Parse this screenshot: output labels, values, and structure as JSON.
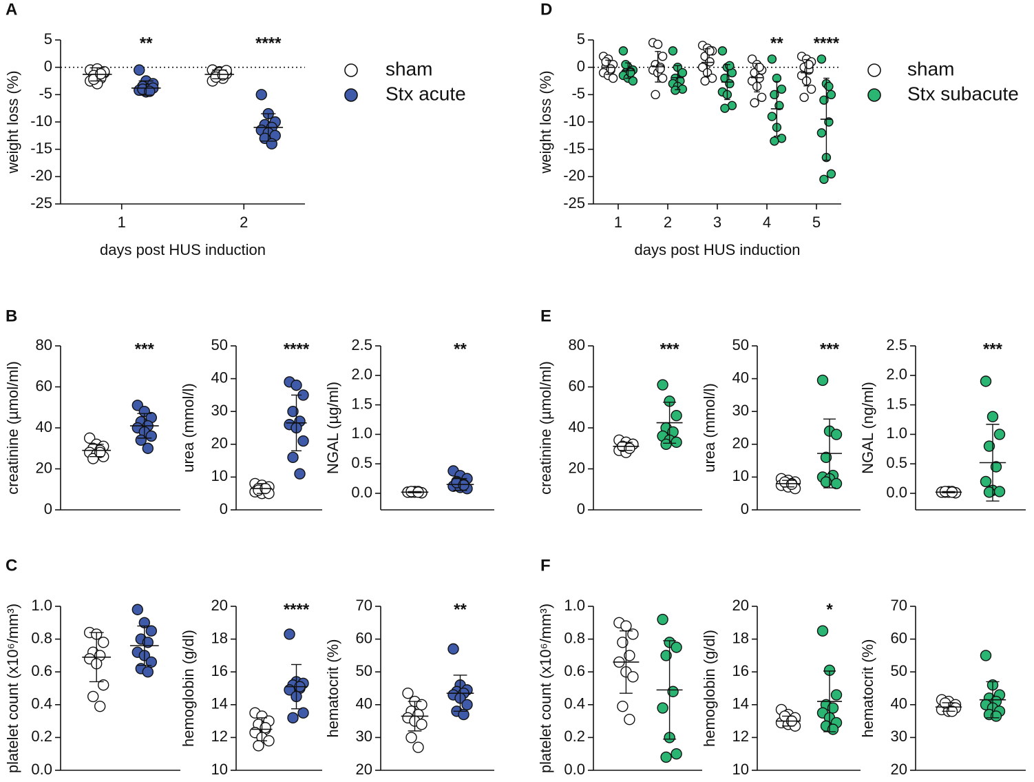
{
  "chart_data": [
    {
      "type": "strip",
      "panel": "A",
      "ylabel": "weight loss (%)",
      "xlabel": "days post HUS induction",
      "categories": [
        1,
        2
      ],
      "ylim": [
        -25,
        5
      ],
      "yticks": [
        5,
        0,
        -5,
        -10,
        -15,
        -20,
        -25
      ],
      "zeroline": true,
      "legend": true,
      "series": [
        {
          "name": "sham",
          "color": "#ffffff",
          "values": [
            [
              -0.5,
              -0.3,
              -1.0,
              -1.5,
              -2.0,
              -2.5,
              -3.0,
              -0.8,
              -2.2,
              -1.2
            ],
            [
              -0.5,
              -0.8,
              -1.2,
              -1.5,
              -2.0,
              -2.5,
              -1.0,
              -0.6,
              -1.8,
              -1.4
            ]
          ],
          "mean": [
            -1.3,
            -1.3
          ],
          "sd": [
            1.2,
            0.8
          ]
        },
        {
          "name": "Stx acute",
          "color": "#3f5aa8",
          "values": [
            [
              -0.5,
              -2.5,
              -3.0,
              -3.5,
              -4.0,
              -4.2,
              -4.5,
              -3.8,
              -4.0,
              -4.4
            ],
            [
              -5,
              -8.5,
              -10,
              -10.5,
              -11,
              -11.5,
              -12,
              -12.5,
              -13,
              -14
            ]
          ],
          "mean": [
            -3.8,
            -11
          ],
          "sd": [
            1.3,
            2.5
          ]
        }
      ],
      "annotations": [
        "**",
        "****"
      ]
    },
    {
      "type": "strip",
      "panel": "B",
      "ylabel": "creatinine (µmol/ml)",
      "ylim": [
        0,
        80
      ],
      "yticks": [
        0,
        20,
        40,
        60,
        80
      ],
      "series": [
        {
          "name": "sham",
          "color": "#ffffff",
          "values": [
            [
              35,
              32,
              31,
              30,
              29,
              28,
              27,
              26,
              25,
              28
            ]
          ],
          "mean": [
            29
          ],
          "sd": [
            3
          ]
        },
        {
          "name": "Stx acute",
          "color": "#3f5aa8",
          "values": [
            [
              51,
              48,
              45,
              43,
              41,
              40,
              38,
              36,
              34,
              30
            ]
          ],
          "mean": [
            41
          ],
          "sd": [
            6
          ]
        }
      ],
      "annotations": [
        "***"
      ]
    },
    {
      "type": "strip",
      "ylabel": "urea (mmol/l)",
      "ylim": [
        0,
        50
      ],
      "yticks": [
        0,
        10,
        20,
        30,
        40,
        50
      ],
      "series": [
        {
          "name": "sham",
          "color": "#ffffff",
          "values": [
            [
              8,
              7.5,
              7,
              6.5,
              6,
              5.5,
              5,
              5,
              6,
              6.5
            ]
          ],
          "mean": [
            6.5
          ],
          "sd": [
            1.5
          ]
        },
        {
          "name": "Stx acute",
          "color": "#3f5aa8",
          "values": [
            [
              39,
              38,
              35,
              30,
              27,
              26,
              25,
              21,
              16,
              11
            ]
          ],
          "mean": [
            26.5
          ],
          "sd": [
            8.5
          ]
        }
      ],
      "annotations": [
        "****"
      ]
    },
    {
      "type": "strip",
      "ylabel": "NGAL (µg/ml)",
      "ylim": [
        -0.28,
        2.5
      ],
      "yticks": [
        {
          "value": 0,
          "label": "0.0"
        },
        {
          "value": 0.5,
          "label": "0.5"
        },
        {
          "value": 1,
          "label": "1.0"
        },
        {
          "value": 1.5,
          "label": "1.5"
        },
        {
          "value": 2,
          "label": "2.0"
        },
        {
          "value": 2.5,
          "label": "2.5"
        }
      ],
      "series": [
        {
          "name": "sham",
          "color": "#ffffff",
          "values": [
            [
              0.02,
              0.03,
              0.01,
              0.02,
              0.03,
              0.02,
              0.02,
              0.01,
              0.03,
              0.02
            ]
          ],
          "mean": [
            0.02
          ],
          "sd": [
            0.01
          ]
        },
        {
          "name": "Stx acute",
          "color": "#3f5aa8",
          "values": [
            [
              0.38,
              0.3,
              0.25,
              0.2,
              0.15,
              0.12,
              0.1,
              0.08,
              0.18,
              0.14
            ]
          ],
          "mean": [
            0.15
          ],
          "sd": [
            0.1
          ]
        }
      ],
      "annotations": [
        "**"
      ]
    },
    {
      "type": "strip",
      "panel": "C",
      "ylabel": "platelet count (x10⁶/mm³)",
      "ylim": [
        0,
        1
      ],
      "yticks": [
        {
          "value": 0,
          "label": "0.0"
        },
        0.2,
        0.4,
        0.6,
        0.8,
        {
          "value": 1,
          "label": "1.0"
        }
      ],
      "series": [
        {
          "name": "sham",
          "color": "#ffffff",
          "values": [
            [
              0.84,
              0.83,
              0.78,
              0.72,
              0.7,
              0.68,
              0.65,
              0.52,
              0.45,
              0.39
            ]
          ],
          "mean": [
            0.69
          ],
          "sd": [
            0.15
          ]
        },
        {
          "name": "Stx acute",
          "color": "#3f5aa8",
          "values": [
            [
              0.98,
              0.9,
              0.85,
              0.8,
              0.78,
              0.72,
              0.7,
              0.66,
              0.62,
              0.6
            ]
          ],
          "mean": [
            0.76
          ],
          "sd": [
            0.12
          ]
        }
      ]
    },
    {
      "type": "strip",
      "ylabel": "hemoglobin (g/dl)",
      "ylim": [
        10,
        20
      ],
      "yticks": [
        10,
        12,
        14,
        16,
        18,
        20
      ],
      "series": [
        {
          "name": "sham",
          "color": "#ffffff",
          "values": [
            [
              13.5,
              13.3,
              13,
              12.8,
              12.5,
              12.3,
              12,
              11.8,
              11.5,
              12.6
            ]
          ],
          "mean": [
            12.5
          ],
          "sd": [
            0.7
          ]
        },
        {
          "name": "Stx acute",
          "color": "#3f5aa8",
          "values": [
            [
              18.3,
              15.4,
              15.3,
              15.2,
              15,
              14.9,
              14.5,
              13.5,
              13.2,
              15.1
            ]
          ],
          "mean": [
            15.1
          ],
          "sd": [
            1.35
          ]
        }
      ],
      "annotations": [
        "****"
      ]
    },
    {
      "type": "strip",
      "ylabel": "hematocrit (%)",
      "ylim": [
        20,
        70
      ],
      "yticks": [
        20,
        30,
        40,
        50,
        60,
        70
      ],
      "series": [
        {
          "name": "sham",
          "color": "#ffffff",
          "values": [
            [
              43.5,
              41,
              40,
              38,
              37,
              36,
              35,
              34,
              30,
              27
            ]
          ],
          "mean": [
            36.5
          ],
          "sd": [
            4.5
          ]
        },
        {
          "name": "Stx acute",
          "color": "#3f5aa8",
          "values": [
            [
              57,
              46,
              44.5,
              44,
              43.5,
              43,
              42,
              40,
              38,
              37
            ]
          ],
          "mean": [
            43.5
          ],
          "sd": [
            5.5
          ]
        }
      ],
      "annotations": [
        "**"
      ]
    },
    {
      "type": "strip",
      "panel": "D",
      "ylabel": "weight loss (%)",
      "xlabel": "days post HUS induction",
      "categories": [
        1,
        2,
        3,
        4,
        5
      ],
      "ylim": [
        -25,
        5
      ],
      "yticks": [
        5,
        0,
        -5,
        -10,
        -15,
        -20,
        -25
      ],
      "zeroline": true,
      "legend": true,
      "series": [
        {
          "name": "sham",
          "color": "#ffffff",
          "values": [
            [
              2,
              1.5,
              0.5,
              0,
              -0.5,
              -1,
              -1.5,
              -2,
              1,
              -0.3
            ],
            [
              4.5,
              4.2,
              2,
              0.5,
              0,
              -0.5,
              -1,
              -2,
              -5,
              -0.3
            ],
            [
              4,
              3.5,
              3,
              2,
              1,
              0,
              -1,
              -2,
              -2.5,
              3
            ],
            [
              1.5,
              0.5,
              -0.5,
              -1,
              -2,
              -2.5,
              -3.5,
              -5.5,
              -6.5,
              0
            ],
            [
              2,
              1.5,
              1,
              0,
              -0.5,
              -1.5,
              -2.5,
              -4,
              -5.5,
              0.5
            ]
          ],
          "mean": [
            0,
            0.1,
            0.9,
            -1.9,
            -1
          ],
          "sd": [
            1.3,
            2.8,
            2.5,
            2.6,
            2.4
          ]
        },
        {
          "name": "Stx subacute",
          "color": "#2bb573",
          "values": [
            [
              3,
              0,
              -0.5,
              -1,
              -0.8,
              -1.5,
              -2,
              -2.5,
              0.5,
              -1
            ],
            [
              3,
              0,
              -1,
              -2,
              -2.5,
              -3,
              -3.5,
              -4,
              -4.2
            ],
            [
              3,
              0,
              -1,
              -2,
              -3,
              -4.5,
              -5,
              -7,
              -7.5,
              0.3
            ],
            [
              1.5,
              -2,
              -4,
              -5,
              -7,
              -9,
              -11,
              -13,
              -13.5
            ],
            [
              1.5,
              -3,
              -5,
              -6,
              -10,
              -12,
              -16.5,
              -19.5,
              -20.5,
              -3.5
            ]
          ],
          "mean": [
            -0.6,
            -1.9,
            -2.7,
            -7.6,
            -9.5
          ],
          "sd": [
            1.4,
            2.2,
            3.2,
            5,
            7.5
          ]
        }
      ],
      "annotations": [
        null,
        null,
        null,
        "**",
        "****"
      ]
    },
    {
      "type": "strip",
      "panel": "E",
      "ylabel": "creatinine (µmol/ml)",
      "ylim": [
        0,
        80
      ],
      "yticks": [
        0,
        20,
        40,
        60,
        80
      ],
      "series": [
        {
          "name": "sham",
          "color": "#ffffff",
          "values": [
            [
              34,
              33,
              32,
              31,
              30,
              29,
              28,
              32,
              31,
              30
            ]
          ],
          "mean": [
            31
          ],
          "sd": [
            2
          ]
        },
        {
          "name": "Stx subacute",
          "color": "#2bb573",
          "values": [
            [
              61,
              53,
              46,
              40,
              38,
              36,
              34,
              33,
              32
            ]
          ],
          "mean": [
            42.5
          ],
          "sd": [
            10
          ]
        }
      ],
      "annotations": [
        "***"
      ]
    },
    {
      "type": "strip",
      "ylabel": "urea (mmol/l)",
      "ylim": [
        0,
        50
      ],
      "yticks": [
        0,
        10,
        20,
        30,
        40,
        50
      ],
      "series": [
        {
          "name": "sham",
          "color": "#ffffff",
          "values": [
            [
              9.5,
              9,
              8.5,
              8,
              8,
              7.5,
              7,
              6.5,
              8.5,
              7.8
            ]
          ],
          "mean": [
            8
          ],
          "sd": [
            1
          ]
        },
        {
          "name": "Stx subacute",
          "color": "#2bb573",
          "values": [
            [
              39.5,
              24,
              23,
              16,
              10.5,
              10,
              9.5,
              8,
              8.5
            ]
          ],
          "mean": [
            17.2
          ],
          "sd": [
            10.5
          ]
        }
      ],
      "annotations": [
        "***"
      ]
    },
    {
      "type": "strip",
      "ylabel": "NGAL (ng/ml)",
      "ylim": [
        -0.28,
        2.5
      ],
      "yticks": [
        {
          "value": 0,
          "label": "0.0"
        },
        {
          "value": 0.5,
          "label": "0.5"
        },
        {
          "value": 1,
          "label": "1.0"
        },
        {
          "value": 1.5,
          "label": "1.5"
        },
        {
          "value": 2,
          "label": "2.0"
        },
        {
          "value": 2.5,
          "label": "2.5"
        }
      ],
      "series": [
        {
          "name": "sham",
          "color": "#ffffff",
          "values": [
            [
              0.02,
              0.03,
              0.01,
              0.02,
              0.03,
              0.02,
              0.02,
              0.01,
              0.03,
              0.02
            ]
          ],
          "mean": [
            0.02
          ],
          "sd": [
            0.01
          ]
        },
        {
          "name": "Stx subacute",
          "color": "#2bb573",
          "values": [
            [
              1.9,
              1.3,
              1.0,
              0.8,
              0.45,
              0.2,
              0.05,
              0.03,
              0.02
            ]
          ],
          "mean": [
            0.52
          ],
          "sd": [
            0.65
          ]
        }
      ],
      "annotations": [
        "***"
      ]
    },
    {
      "type": "strip",
      "panel": "F",
      "ylabel": "platelet count (x10⁶/mm³)",
      "ylim": [
        0,
        1
      ],
      "yticks": [
        {
          "value": 0,
          "label": "0.0"
        },
        0.2,
        0.4,
        0.6,
        0.8,
        {
          "value": 1,
          "label": "1.0"
        }
      ],
      "series": [
        {
          "name": "sham",
          "color": "#ffffff",
          "values": [
            [
              0.9,
              0.88,
              0.83,
              0.78,
              0.7,
              0.66,
              0.6,
              0.57,
              0.39,
              0.31
            ]
          ],
          "mean": [
            0.66
          ],
          "sd": [
            0.19
          ]
        },
        {
          "name": "Stx subacute",
          "color": "#2bb573",
          "values": [
            [
              0.92,
              0.78,
              0.75,
              0.7,
              0.48,
              0.38,
              0.2,
              0.1,
              0.08
            ]
          ],
          "mean": [
            0.49
          ],
          "sd": [
            0.3
          ]
        }
      ]
    },
    {
      "type": "strip",
      "ylabel": "hemoglobin (g/dl)",
      "ylim": [
        10,
        20
      ],
      "yticks": [
        10,
        12,
        14,
        16,
        18,
        20
      ],
      "series": [
        {
          "name": "sham",
          "color": "#ffffff",
          "values": [
            [
              13.7,
              13.4,
              13.2,
              13.1,
              13,
              12.9,
              12.8,
              12.7,
              13.3,
              13
            ]
          ],
          "mean": [
            13
          ],
          "sd": [
            0.3
          ]
        },
        {
          "name": "Stx subacute",
          "color": "#2bb573",
          "values": [
            [
              18.5,
              16.1,
              14.6,
              14,
              13.8,
              13.5,
              13.2,
              12.9,
              12.7,
              12.5
            ]
          ],
          "mean": [
            14.2
          ],
          "sd": [
            1.85
          ]
        }
      ],
      "annotations": [
        "*"
      ]
    },
    {
      "type": "strip",
      "ylabel": "hematocrit (%)",
      "ylim": [
        20,
        70
      ],
      "yticks": [
        20,
        30,
        40,
        50,
        60,
        70
      ],
      "series": [
        {
          "name": "sham",
          "color": "#ffffff",
          "values": [
            [
              41.5,
              41,
              40,
              39.5,
              39,
              38.5,
              38,
              39,
              40.5,
              38
            ]
          ],
          "mean": [
            39.3
          ],
          "sd": [
            1.3
          ]
        },
        {
          "name": "Stx subacute",
          "color": "#2bb573",
          "values": [
            [
              55,
              46,
              43,
              42,
              41,
              40,
              39,
              38,
              37,
              36.5
            ]
          ],
          "mean": [
            41.5
          ],
          "sd": [
            5.5
          ]
        }
      ]
    }
  ]
}
